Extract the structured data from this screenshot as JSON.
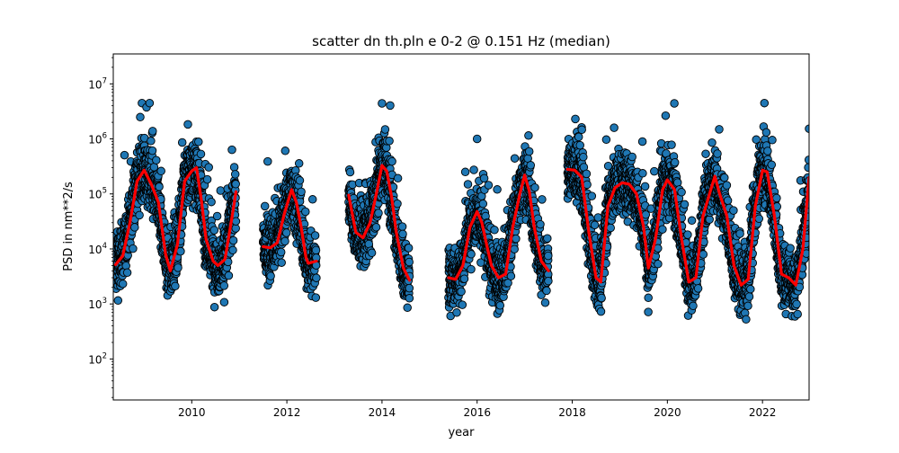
{
  "chart_data": {
    "type": "scatter",
    "title": "scatter dn th.pln e 0-2 @ 0.151 Hz (median)",
    "xlabel": "year",
    "ylabel": "PSD in nm**2/s",
    "yscale": "log",
    "xlim": [
      2008.35,
      2022.98
    ],
    "ylim": [
      18,
      35000000
    ],
    "x_ticks": [
      2010,
      2012,
      2014,
      2016,
      2018,
      2020,
      2022
    ],
    "y_ticks": [
      {
        "value": 100,
        "base": "10",
        "exp": "2"
      },
      {
        "value": 1000,
        "base": "10",
        "exp": "3"
      },
      {
        "value": 10000,
        "base": "10",
        "exp": "4"
      },
      {
        "value": 100000,
        "base": "10",
        "exp": "5"
      },
      {
        "value": 1000000,
        "base": "10",
        "exp": "6"
      },
      {
        "value": 10000000,
        "base": "10",
        "exp": "7"
      }
    ],
    "grid": false,
    "colors": {
      "points": "#1f77b4",
      "point_edge": "#000000",
      "median": "#ff0000"
    },
    "segments": [
      {
        "x": [
          2008.4,
          2008.55,
          2008.7,
          2008.85,
          2009.0,
          2009.15,
          2009.3,
          2009.45,
          2009.55,
          2009.7,
          2009.85,
          2010.0,
          2010.1,
          2010.2,
          2010.3,
          2010.45,
          2010.55,
          2010.7,
          2010.85,
          2010.93
        ],
        "y": [
          5200,
          7500,
          30000,
          170000,
          270000,
          150000,
          70000,
          8000,
          4000,
          12000,
          170000,
          260000,
          300000,
          80000,
          15000,
          6000,
          5000,
          6500,
          40000,
          110000
        ]
      },
      {
        "x": [
          2011.5,
          2011.65,
          2011.8,
          2011.95,
          2012.1,
          2012.2,
          2012.3,
          2012.4,
          2012.45,
          2012.55,
          2012.62
        ],
        "y": [
          11000,
          10500,
          13000,
          45000,
          120000,
          70000,
          25000,
          7000,
          5500,
          5800,
          6000
        ]
      },
      {
        "x": [
          2013.3,
          2013.45,
          2013.6,
          2013.75,
          2013.9,
          2014.0,
          2014.1,
          2014.2,
          2014.3,
          2014.45,
          2014.58
        ],
        "y": [
          95000,
          20000,
          16000,
          30000,
          120000,
          330000,
          260000,
          90000,
          20000,
          4500,
          2700
        ]
      },
      {
        "x": [
          2015.4,
          2015.55,
          2015.7,
          2015.85,
          2016.0,
          2016.1,
          2016.2,
          2016.3,
          2016.45,
          2016.6,
          2016.75,
          2016.9,
          2017.0,
          2017.1,
          2017.2,
          2017.35,
          2017.5
        ],
        "y": [
          3000,
          2800,
          5000,
          25000,
          48000,
          30000,
          12000,
          5000,
          3000,
          3500,
          25000,
          100000,
          220000,
          110000,
          25000,
          6000,
          4000
        ]
      },
      {
        "x": [
          2017.9,
          2018.05,
          2018.2,
          2018.35,
          2018.5,
          2018.6,
          2018.75,
          2018.9,
          2019.05,
          2019.2,
          2019.35,
          2019.5,
          2019.6,
          2019.75,
          2019.9,
          2020.0,
          2020.15,
          2020.3,
          2020.45,
          2020.6,
          2020.75,
          2020.9,
          2021.0,
          2021.1,
          2021.25,
          2021.4,
          2021.55,
          2021.7,
          2021.85,
          2022.0,
          2022.1,
          2022.25,
          2022.4,
          2022.55,
          2022.7,
          2022.85,
          2022.98
        ],
        "y": [
          280000,
          270000,
          200000,
          20000,
          3000,
          2500,
          60000,
          130000,
          160000,
          150000,
          100000,
          25000,
          4500,
          15000,
          120000,
          180000,
          120000,
          15000,
          2500,
          3000,
          40000,
          110000,
          210000,
          100000,
          40000,
          5000,
          2200,
          2800,
          60000,
          270000,
          250000,
          40000,
          3500,
          3000,
          2200,
          10000,
          200000
        ]
      }
    ]
  }
}
